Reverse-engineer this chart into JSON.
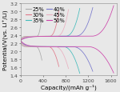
{
  "title": "",
  "xlabel": "Capacity/(mAh g⁻¹)",
  "ylabel": "Potential/V(vs. Li⁺/Li)",
  "xlim": [
    0,
    1700
  ],
  "ylim": [
    1.4,
    3.2
  ],
  "xticks": [
    0,
    400,
    800,
    1200,
    1600
  ],
  "yticks": [
    1.4,
    1.6,
    1.8,
    2.0,
    2.2,
    2.4,
    2.6,
    2.8,
    3.0,
    3.2
  ],
  "series": [
    {
      "label": "25%",
      "color": "#aaaaaa",
      "max_cap": 380,
      "charge_max": 2.92,
      "discharge_min": 1.78
    },
    {
      "label": "30%",
      "color": "#e07a8a",
      "max_cap": 680,
      "charge_max": 3.02,
      "discharge_min": 1.62
    },
    {
      "label": "35%",
      "color": "#44bbbb",
      "max_cap": 1050,
      "charge_max": 3.08,
      "discharge_min": 1.45
    },
    {
      "label": "40%",
      "color": "#7777cc",
      "max_cap": 1280,
      "charge_max": 3.1,
      "discharge_min": 1.5
    },
    {
      "label": "45%",
      "color": "#e8b0c0",
      "max_cap": 850,
      "charge_max": 3.05,
      "discharge_min": 1.57
    },
    {
      "label": "50%",
      "color": "#cc44aa",
      "max_cap": 1650,
      "charge_max": 3.15,
      "discharge_min": 1.46
    }
  ],
  "v_start": 2.28,
  "v_plateau_charge": 2.38,
  "v_plateau_discharge": 2.12,
  "background_color": "#e8e8e8",
  "legend_fontsize": 4.8,
  "axis_fontsize": 5.2,
  "tick_fontsize": 4.5
}
